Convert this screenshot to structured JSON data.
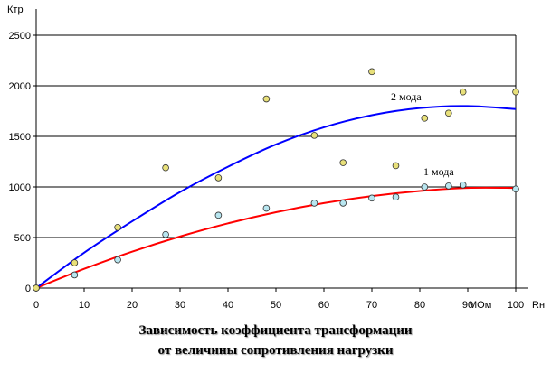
{
  "chart_data": {
    "type": "scatter",
    "ylabel": "Ктр",
    "xlabel": "Rн",
    "x_unit": "МОм",
    "xlim": [
      0,
      100
    ],
    "ylim": [
      0,
      2500
    ],
    "x_ticks": [
      "0",
      "10",
      "20",
      "30",
      "40",
      "50",
      "60",
      "70",
      "80",
      "90",
      "100"
    ],
    "y_ticks": [
      "0",
      "500",
      "1000",
      "1500",
      "2000",
      "2500"
    ],
    "grid": "horizontal",
    "series": [
      {
        "name": "1 мода",
        "color": "#ff0000",
        "marker_color": "#b8e6f0",
        "points": [
          [
            0,
            0
          ],
          [
            8,
            130
          ],
          [
            17,
            280
          ],
          [
            27,
            530
          ],
          [
            38,
            720
          ],
          [
            48,
            790
          ],
          [
            58,
            840
          ],
          [
            64,
            840
          ],
          [
            70,
            890
          ],
          [
            75,
            900
          ],
          [
            81,
            1000
          ],
          [
            86,
            1010
          ],
          [
            89,
            1020
          ],
          [
            100,
            980
          ]
        ],
        "trend": [
          [
            0,
            0
          ],
          [
            10,
            190
          ],
          [
            20,
            360
          ],
          [
            30,
            510
          ],
          [
            40,
            640
          ],
          [
            50,
            750
          ],
          [
            60,
            840
          ],
          [
            70,
            910
          ],
          [
            80,
            960
          ],
          [
            90,
            990
          ],
          [
            100,
            990
          ]
        ]
      },
      {
        "name": "2 мода",
        "color": "#0000ff",
        "marker_color": "#e8e07a",
        "points": [
          [
            0,
            0
          ],
          [
            8,
            250
          ],
          [
            17,
            600
          ],
          [
            27,
            1190
          ],
          [
            38,
            1090
          ],
          [
            48,
            1870
          ],
          [
            58,
            1510
          ],
          [
            64,
            1240
          ],
          [
            70,
            2140
          ],
          [
            75,
            1210
          ],
          [
            81,
            1680
          ],
          [
            86,
            1730
          ],
          [
            89,
            1940
          ],
          [
            100,
            1940
          ]
        ],
        "trend": [
          [
            0,
            0
          ],
          [
            10,
            350
          ],
          [
            20,
            660
          ],
          [
            30,
            950
          ],
          [
            40,
            1200
          ],
          [
            50,
            1420
          ],
          [
            60,
            1590
          ],
          [
            70,
            1710
          ],
          [
            80,
            1780
          ],
          [
            90,
            1800
          ],
          [
            100,
            1770
          ]
        ]
      }
    ]
  },
  "caption": {
    "line1": "Зависимость коэффициента трансформации",
    "line2": "от величины сопротивления нагрузки"
  }
}
